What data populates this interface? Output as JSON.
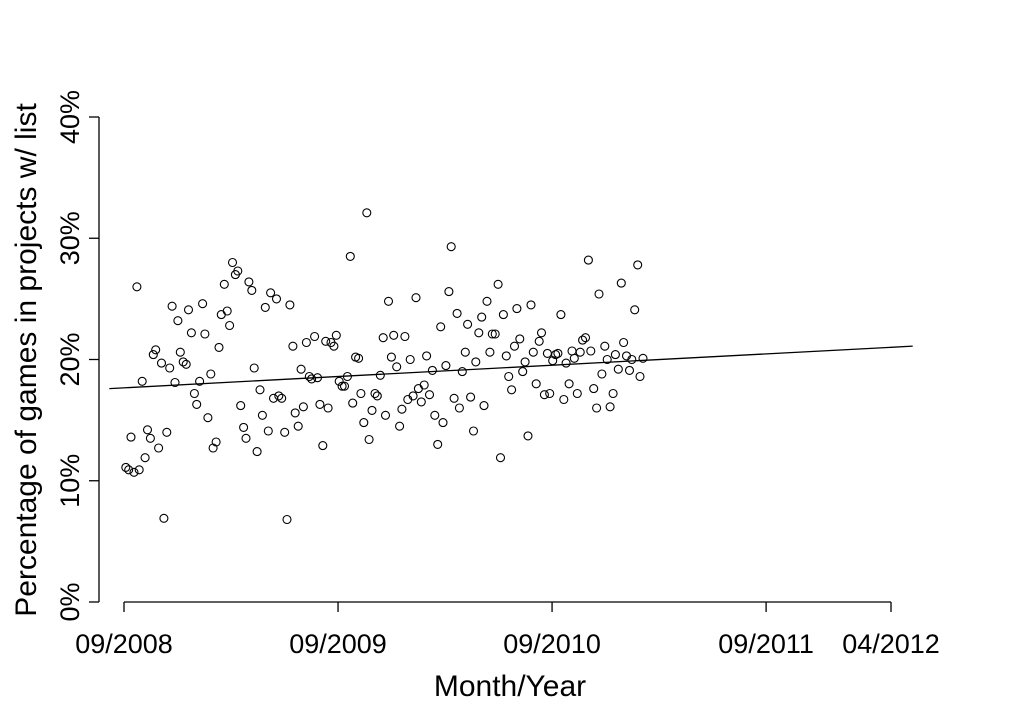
{
  "chart_data": {
    "type": "scatter",
    "title": "",
    "xlabel": "Month/Year",
    "ylabel": "Percentage of games in projects w/ list",
    "x_unit": "week",
    "x_tick_labels": [
      "09/2008",
      "09/2009",
      "09/2010",
      "09/2011",
      "04/2012"
    ],
    "x_ticks": [
      "2008-09-01",
      "2009-09-01",
      "2010-09-01",
      "2011-09-01",
      "2012-04-01"
    ],
    "xlim": [
      "2008-09-01",
      "2012-05-10"
    ],
    "y_tick_labels": [
      "0%",
      "10%",
      "20%",
      "30%",
      "40%"
    ],
    "y_ticks": [
      0,
      10,
      20,
      30,
      40
    ],
    "ylim": [
      0,
      40
    ],
    "grid": false,
    "legend": "none",
    "trend_line": {
      "start": [
        "2008-08-07",
        17.6
      ],
      "end": [
        "2012-05-08",
        21.1
      ]
    },
    "points": [
      [
        "2008-09-04",
        11.1
      ],
      [
        "2008-09-09",
        10.9
      ],
      [
        "2008-09-13",
        13.6
      ],
      [
        "2008-09-18",
        10.7
      ],
      [
        "2008-09-23",
        26.0
      ],
      [
        "2008-09-27",
        10.9
      ],
      [
        "2008-10-02",
        18.2
      ],
      [
        "2008-10-07",
        11.9
      ],
      [
        "2008-10-11",
        14.2
      ],
      [
        "2008-10-16",
        13.5
      ],
      [
        "2008-10-21",
        20.4
      ],
      [
        "2008-10-25",
        20.8
      ],
      [
        "2008-10-30",
        12.7
      ],
      [
        "2008-11-04",
        19.7
      ],
      [
        "2008-11-08",
        6.9
      ],
      [
        "2008-11-13",
        14.0
      ],
      [
        "2008-11-18",
        19.3
      ],
      [
        "2008-11-22",
        24.4
      ],
      [
        "2008-11-27",
        18.1
      ],
      [
        "2008-12-02",
        23.2
      ],
      [
        "2008-12-06",
        20.6
      ],
      [
        "2008-12-11",
        19.8
      ],
      [
        "2008-12-16",
        19.6
      ],
      [
        "2008-12-20",
        24.1
      ],
      [
        "2008-12-25",
        22.2
      ],
      [
        "2008-12-30",
        17.2
      ],
      [
        "2009-01-03",
        16.3
      ],
      [
        "2009-01-08",
        18.2
      ],
      [
        "2009-01-13",
        24.6
      ],
      [
        "2009-01-17",
        22.1
      ],
      [
        "2009-01-22",
        15.2
      ],
      [
        "2009-01-27",
        18.8
      ],
      [
        "2009-01-31",
        12.7
      ],
      [
        "2009-02-05",
        13.2
      ],
      [
        "2009-02-10",
        21.0
      ],
      [
        "2009-02-14",
        23.7
      ],
      [
        "2009-02-19",
        26.2
      ],
      [
        "2009-02-24",
        24.0
      ],
      [
        "2009-02-28",
        22.8
      ],
      [
        "2009-03-05",
        28.0
      ],
      [
        "2009-03-10",
        27.0
      ],
      [
        "2009-03-14",
        27.3
      ],
      [
        "2009-03-19",
        16.2
      ],
      [
        "2009-03-24",
        14.4
      ],
      [
        "2009-03-28",
        13.5
      ],
      [
        "2009-04-02",
        26.4
      ],
      [
        "2009-04-07",
        25.7
      ],
      [
        "2009-04-11",
        19.3
      ],
      [
        "2009-04-16",
        12.4
      ],
      [
        "2009-04-21",
        17.5
      ],
      [
        "2009-04-25",
        15.4
      ],
      [
        "2009-04-30",
        24.3
      ],
      [
        "2009-05-05",
        14.1
      ],
      [
        "2009-05-09",
        25.5
      ],
      [
        "2009-05-14",
        16.8
      ],
      [
        "2009-05-19",
        25.0
      ],
      [
        "2009-05-23",
        17.0
      ],
      [
        "2009-05-28",
        16.8
      ],
      [
        "2009-06-02",
        14.0
      ],
      [
        "2009-06-06",
        6.8
      ],
      [
        "2009-06-11",
        24.5
      ],
      [
        "2009-06-16",
        21.1
      ],
      [
        "2009-06-20",
        15.6
      ],
      [
        "2009-06-25",
        14.5
      ],
      [
        "2009-06-30",
        19.2
      ],
      [
        "2009-07-04",
        16.1
      ],
      [
        "2009-07-09",
        21.4
      ],
      [
        "2009-07-14",
        18.6
      ],
      [
        "2009-07-18",
        18.4
      ],
      [
        "2009-07-23",
        21.9
      ],
      [
        "2009-07-28",
        18.5
      ],
      [
        "2009-08-01",
        16.3
      ],
      [
        "2009-08-06",
        12.9
      ],
      [
        "2009-08-11",
        21.5
      ],
      [
        "2009-08-15",
        16.0
      ],
      [
        "2009-08-20",
        21.4
      ],
      [
        "2009-08-25",
        21.1
      ],
      [
        "2009-08-29",
        22.0
      ],
      [
        "2009-09-03",
        18.2
      ],
      [
        "2009-09-08",
        17.8
      ],
      [
        "2009-09-12",
        17.8
      ],
      [
        "2009-09-17",
        18.6
      ],
      [
        "2009-09-22",
        28.5
      ],
      [
        "2009-09-26",
        16.4
      ],
      [
        "2009-10-01",
        20.2
      ],
      [
        "2009-10-06",
        20.1
      ],
      [
        "2009-10-10",
        17.2
      ],
      [
        "2009-10-15",
        14.8
      ],
      [
        "2009-10-20",
        32.1
      ],
      [
        "2009-10-24",
        13.4
      ],
      [
        "2009-10-29",
        15.8
      ],
      [
        "2009-11-03",
        17.2
      ],
      [
        "2009-11-07",
        17.0
      ],
      [
        "2009-11-12",
        18.7
      ],
      [
        "2009-11-17",
        21.8
      ],
      [
        "2009-11-21",
        15.4
      ],
      [
        "2009-11-26",
        24.8
      ],
      [
        "2009-12-01",
        20.2
      ],
      [
        "2009-12-05",
        22.0
      ],
      [
        "2009-12-10",
        19.4
      ],
      [
        "2009-12-15",
        14.5
      ],
      [
        "2009-12-19",
        15.9
      ],
      [
        "2009-12-24",
        21.9
      ],
      [
        "2009-12-29",
        16.7
      ],
      [
        "2010-01-02",
        20.0
      ],
      [
        "2010-01-07",
        17.0
      ],
      [
        "2010-01-12",
        25.1
      ],
      [
        "2010-01-16",
        17.6
      ],
      [
        "2010-01-21",
        16.5
      ],
      [
        "2010-01-26",
        17.9
      ],
      [
        "2010-01-30",
        20.3
      ],
      [
        "2010-02-04",
        17.1
      ],
      [
        "2010-02-09",
        19.1
      ],
      [
        "2010-02-13",
        15.4
      ],
      [
        "2010-02-18",
        13.0
      ],
      [
        "2010-02-23",
        22.7
      ],
      [
        "2010-02-27",
        14.8
      ],
      [
        "2010-03-04",
        19.5
      ],
      [
        "2010-03-09",
        25.6
      ],
      [
        "2010-03-13",
        29.3
      ],
      [
        "2010-03-18",
        16.8
      ],
      [
        "2010-03-23",
        23.8
      ],
      [
        "2010-03-27",
        16.0
      ],
      [
        "2010-04-01",
        19.0
      ],
      [
        "2010-04-06",
        20.6
      ],
      [
        "2010-04-10",
        22.9
      ],
      [
        "2010-04-15",
        16.9
      ],
      [
        "2010-04-20",
        14.1
      ],
      [
        "2010-04-24",
        19.8
      ],
      [
        "2010-04-29",
        22.2
      ],
      [
        "2010-05-04",
        23.5
      ],
      [
        "2010-05-08",
        16.2
      ],
      [
        "2010-05-13",
        24.8
      ],
      [
        "2010-05-18",
        20.6
      ],
      [
        "2010-05-22",
        22.1
      ],
      [
        "2010-05-27",
        22.1
      ],
      [
        "2010-06-01",
        26.2
      ],
      [
        "2010-06-05",
        11.9
      ],
      [
        "2010-06-10",
        23.7
      ],
      [
        "2010-06-15",
        20.3
      ],
      [
        "2010-06-19",
        18.6
      ],
      [
        "2010-06-24",
        17.5
      ],
      [
        "2010-06-29",
        21.1
      ],
      [
        "2010-07-03",
        24.2
      ],
      [
        "2010-07-08",
        21.7
      ],
      [
        "2010-07-13",
        19.0
      ],
      [
        "2010-07-17",
        19.8
      ],
      [
        "2010-07-22",
        13.7
      ],
      [
        "2010-07-27",
        24.5
      ],
      [
        "2010-07-31",
        20.6
      ],
      [
        "2010-08-05",
        18.0
      ],
      [
        "2010-08-10",
        21.5
      ],
      [
        "2010-08-14",
        22.2
      ],
      [
        "2010-08-19",
        17.1
      ],
      [
        "2010-08-24",
        20.5
      ],
      [
        "2010-08-28",
        17.2
      ],
      [
        "2010-09-02",
        19.9
      ],
      [
        "2010-09-07",
        20.4
      ],
      [
        "2010-09-11",
        20.5
      ],
      [
        "2010-09-16",
        23.7
      ],
      [
        "2010-09-21",
        16.7
      ],
      [
        "2010-09-25",
        19.7
      ],
      [
        "2010-09-30",
        18.0
      ],
      [
        "2010-10-05",
        20.7
      ],
      [
        "2010-10-09",
        20.1
      ],
      [
        "2010-10-14",
        17.2
      ],
      [
        "2010-10-19",
        20.6
      ],
      [
        "2010-10-23",
        21.6
      ],
      [
        "2010-10-28",
        21.8
      ],
      [
        "2010-11-02",
        28.2
      ],
      [
        "2010-11-06",
        20.7
      ],
      [
        "2010-11-11",
        17.6
      ],
      [
        "2010-11-16",
        16.0
      ],
      [
        "2010-11-20",
        25.4
      ],
      [
        "2010-11-25",
        18.8
      ],
      [
        "2010-11-30",
        21.1
      ],
      [
        "2010-12-04",
        20.0
      ],
      [
        "2010-12-09",
        16.1
      ],
      [
        "2010-12-14",
        17.2
      ],
      [
        "2010-12-18",
        20.4
      ],
      [
        "2010-12-23",
        19.2
      ],
      [
        "2010-12-28",
        26.3
      ],
      [
        "2011-01-01",
        21.4
      ],
      [
        "2011-01-06",
        20.3
      ],
      [
        "2011-01-11",
        19.1
      ],
      [
        "2011-01-15",
        20.0
      ],
      [
        "2011-01-20",
        24.1
      ],
      [
        "2011-01-25",
        27.8
      ],
      [
        "2011-01-29",
        18.6
      ],
      [
        "2011-02-03",
        20.1
      ]
    ]
  }
}
